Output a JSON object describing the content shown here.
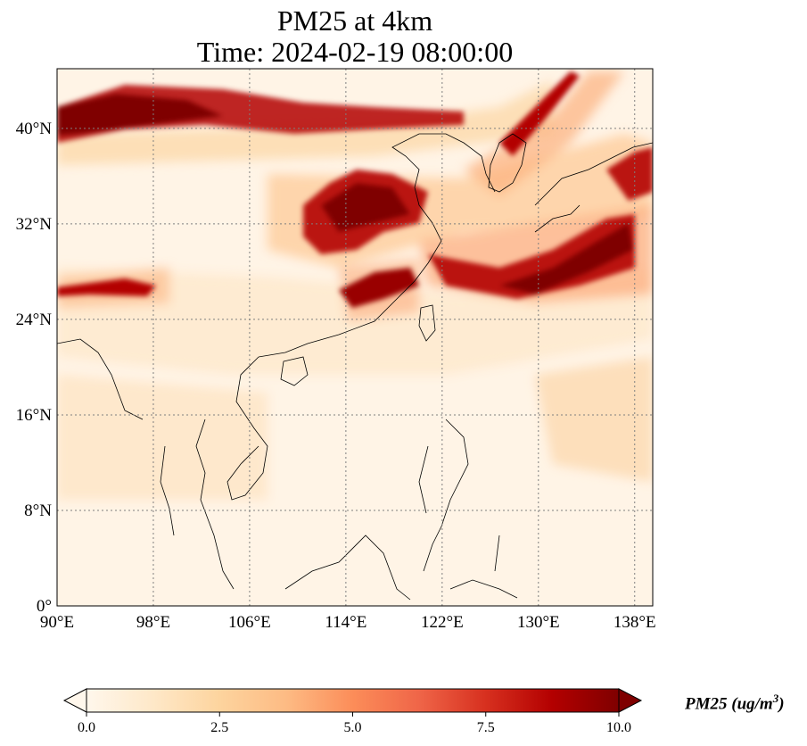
{
  "title_line1": "PM25 at 4km",
  "title_line2": "Time: 2024-02-19 08:00:00",
  "map": {
    "projection": "PlateCarree",
    "lon_range": [
      90,
      139.5
    ],
    "lat_range": [
      0,
      45
    ],
    "gridlines": "dotted",
    "lon_ticks": [
      {
        "value": 90,
        "label": "90°E"
      },
      {
        "value": 98,
        "label": "98°E"
      },
      {
        "value": 106,
        "label": "106°E"
      },
      {
        "value": 114,
        "label": "114°E"
      },
      {
        "value": 122,
        "label": "122°E"
      },
      {
        "value": 130,
        "label": "130°E"
      },
      {
        "value": 138,
        "label": "138°E"
      }
    ],
    "lat_ticks": [
      {
        "value": 0,
        "label": "0°"
      },
      {
        "value": 8,
        "label": "8°N"
      },
      {
        "value": 16,
        "label": "16°N"
      },
      {
        "value": 24,
        "label": "24°N"
      },
      {
        "value": 32,
        "label": "32°N"
      },
      {
        "value": 40,
        "label": "40°N"
      }
    ]
  },
  "colorbar": {
    "colormap": "OrRd",
    "colors": [
      "#fff7ec",
      "#fee8c8",
      "#fdd49e",
      "#fdbb84",
      "#fc8d59",
      "#ef6548",
      "#d7301f",
      "#b30000",
      "#7f0000"
    ],
    "vmin": 0,
    "vmax": 10,
    "extend": "both",
    "ticks": [
      {
        "value": 0,
        "label": "0.0"
      },
      {
        "value": 2.5,
        "label": "2.5"
      },
      {
        "value": 5,
        "label": "5.0"
      },
      {
        "value": 7.5,
        "label": "7.5"
      },
      {
        "value": 10,
        "label": "10.0"
      }
    ],
    "label_main": "PM25 (ug/m",
    "label_sup": "3",
    "label_end": ")"
  }
}
